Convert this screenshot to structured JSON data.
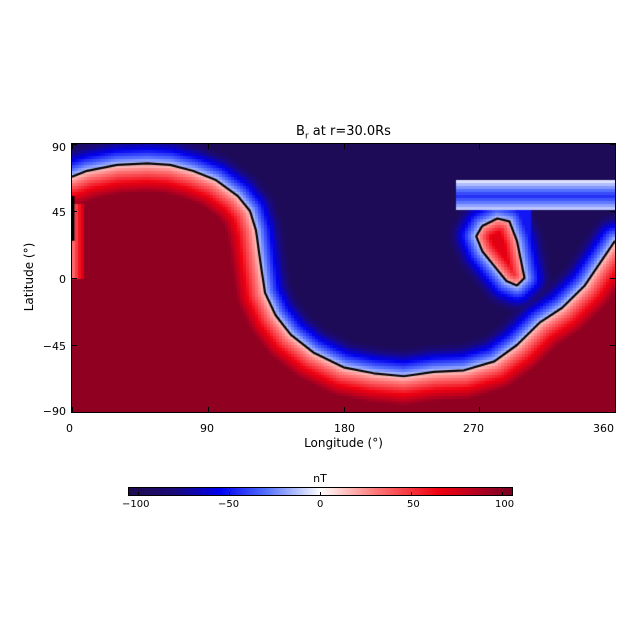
{
  "chart_data": {
    "type": "heatmap",
    "title": "B_r at r=30.0Rs",
    "title_main": "B",
    "title_sub": "r",
    "title_rest": " at r=30.0Rs",
    "xlabel": "Longitude (°)",
    "ylabel": "Latitude (°)",
    "xlim": [
      0,
      360
    ],
    "ylim": [
      -90,
      90
    ],
    "xticks": [
      "0",
      "90",
      "180",
      "270",
      "360"
    ],
    "yticks": [
      "90",
      "45",
      "0",
      "−45",
      "−90"
    ],
    "xtick_values": [
      0,
      90,
      180,
      270,
      360
    ],
    "ytick_values": [
      90,
      45,
      0,
      -45,
      -90
    ],
    "colorbar": {
      "label": "nT",
      "range": [
        -105,
        105
      ],
      "ticks": [
        "−100",
        "−50",
        "0",
        "50",
        "100"
      ],
      "tick_values": [
        -100,
        -50,
        0,
        50,
        100
      ],
      "colormap": [
        {
          "v": -105,
          "c": "#1e0b4f"
        },
        {
          "v": -80,
          "c": "#1a0a7a"
        },
        {
          "v": -55,
          "c": "#0000f0"
        },
        {
          "v": -30,
          "c": "#5470ff"
        },
        {
          "v": 0,
          "c": "#ffffff"
        },
        {
          "v": 30,
          "c": "#ff7a7a"
        },
        {
          "v": 65,
          "c": "#f00010"
        },
        {
          "v": 85,
          "c": "#b80020"
        },
        {
          "v": 105,
          "c": "#7a0022"
        }
      ]
    },
    "regions": [
      {
        "polarity": "negative",
        "value": -95,
        "description": "northern cap and central longitude band ~130-300°, down to ~-65° lat at 220°"
      },
      {
        "polarity": "positive",
        "value": 95,
        "description": "large positive lobe from 0-130° longitude, below ~70° lat; southern band across all longitudes"
      },
      {
        "polarity": "positive",
        "value": 45,
        "description": "isolated positive island near lon 270-300°, lat 0-40°"
      }
    ],
    "neutral_line_main": [
      [
        0,
        68
      ],
      [
        10,
        72
      ],
      [
        30,
        76
      ],
      [
        50,
        77
      ],
      [
        65,
        76
      ],
      [
        80,
        72
      ],
      [
        95,
        66
      ],
      [
        110,
        55
      ],
      [
        118,
        45
      ],
      [
        122,
        32
      ],
      [
        125,
        10
      ],
      [
        128,
        -10
      ],
      [
        135,
        -25
      ],
      [
        145,
        -38
      ],
      [
        160,
        -50
      ],
      [
        180,
        -60
      ],
      [
        200,
        -64
      ],
      [
        220,
        -66
      ],
      [
        240,
        -63
      ],
      [
        260,
        -62
      ],
      [
        280,
        -56
      ],
      [
        295,
        -45
      ],
      [
        310,
        -30
      ],
      [
        325,
        -20
      ],
      [
        340,
        -5
      ],
      [
        350,
        10
      ],
      [
        360,
        25
      ]
    ],
    "neutral_line_island": [
      [
        272,
        35
      ],
      [
        282,
        40
      ],
      [
        290,
        38
      ],
      [
        295,
        25
      ],
      [
        298,
        10
      ],
      [
        300,
        0
      ],
      [
        295,
        -5
      ],
      [
        288,
        -2
      ],
      [
        280,
        8
      ],
      [
        272,
        18
      ],
      [
        268,
        28
      ],
      [
        272,
        35
      ]
    ],
    "neutral_line_left_edge": [
      [
        0,
        55
      ],
      [
        0,
        25
      ]
    ]
  }
}
